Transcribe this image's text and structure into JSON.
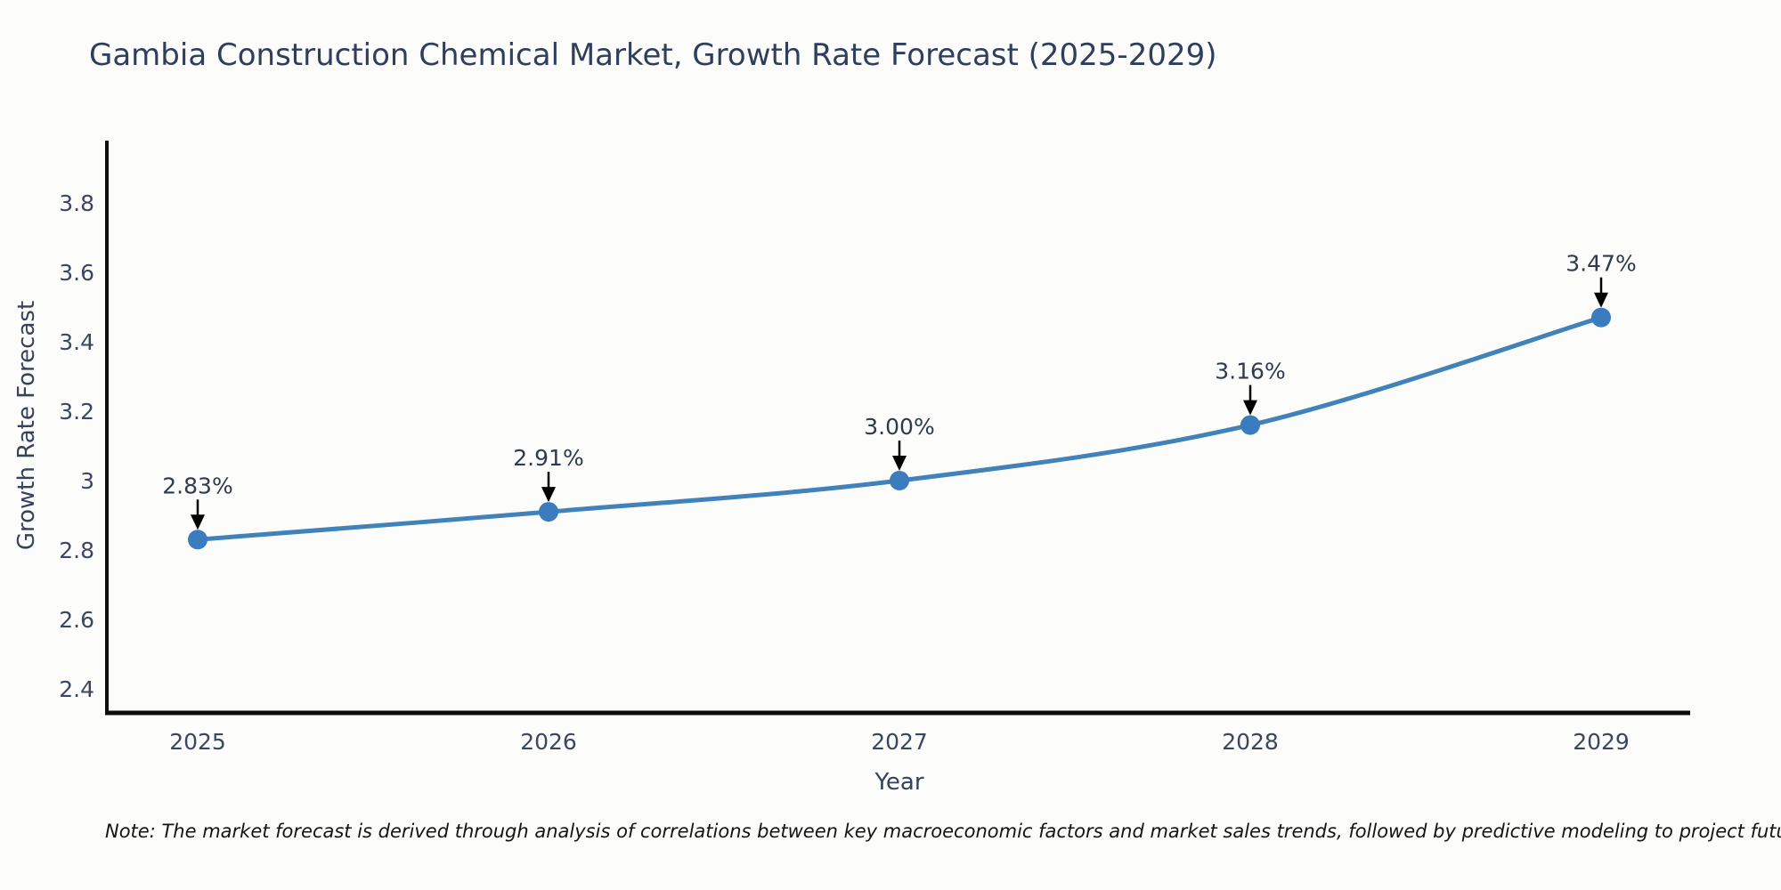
{
  "header": {
    "title": "Gambia Construction Chemical Market, Growth Rate Forecast (2025-2029)"
  },
  "footer": {
    "note": "Note: The market forecast is derived through analysis of correlations between key macroeconomic factors and market sales trends, followed by predictive modeling to project future sales"
  },
  "chart_data": {
    "type": "line",
    "title": "Gambia Construction Chemical Market, Growth Rate Forecast (2025-2029)",
    "xlabel": "Year",
    "ylabel": "Growth Rate Forecast",
    "categories": [
      "2025",
      "2026",
      "2027",
      "2028",
      "2029"
    ],
    "values": [
      2.83,
      2.91,
      3.0,
      3.16,
      3.47
    ],
    "point_labels": [
      "2.83%",
      "2.91%",
      "3.00%",
      "3.16%",
      "3.47%"
    ],
    "y_tick_labels": [
      "3.8",
      "3.6",
      "3.4",
      "3.2",
      "3",
      "2.8",
      "2.6",
      "2.4"
    ],
    "y_tick_values": [
      3.8,
      3.6,
      3.4,
      3.2,
      3.0,
      2.8,
      2.6,
      2.4
    ],
    "ylim": [
      2.33,
      3.98
    ],
    "grid": false,
    "legend_position": "none",
    "line_shape": "spline",
    "annotation_arrows": true,
    "colors": {
      "line": "#4182ba",
      "marker": "#3a7cbe",
      "arrow": "#000000",
      "axis": "#0d0d0d",
      "tick_label": "#3b4660",
      "annotation_label": "#2e3a4e",
      "title": "#2f3e5c",
      "note": "#141414",
      "background": "#fcfcfb"
    }
  }
}
